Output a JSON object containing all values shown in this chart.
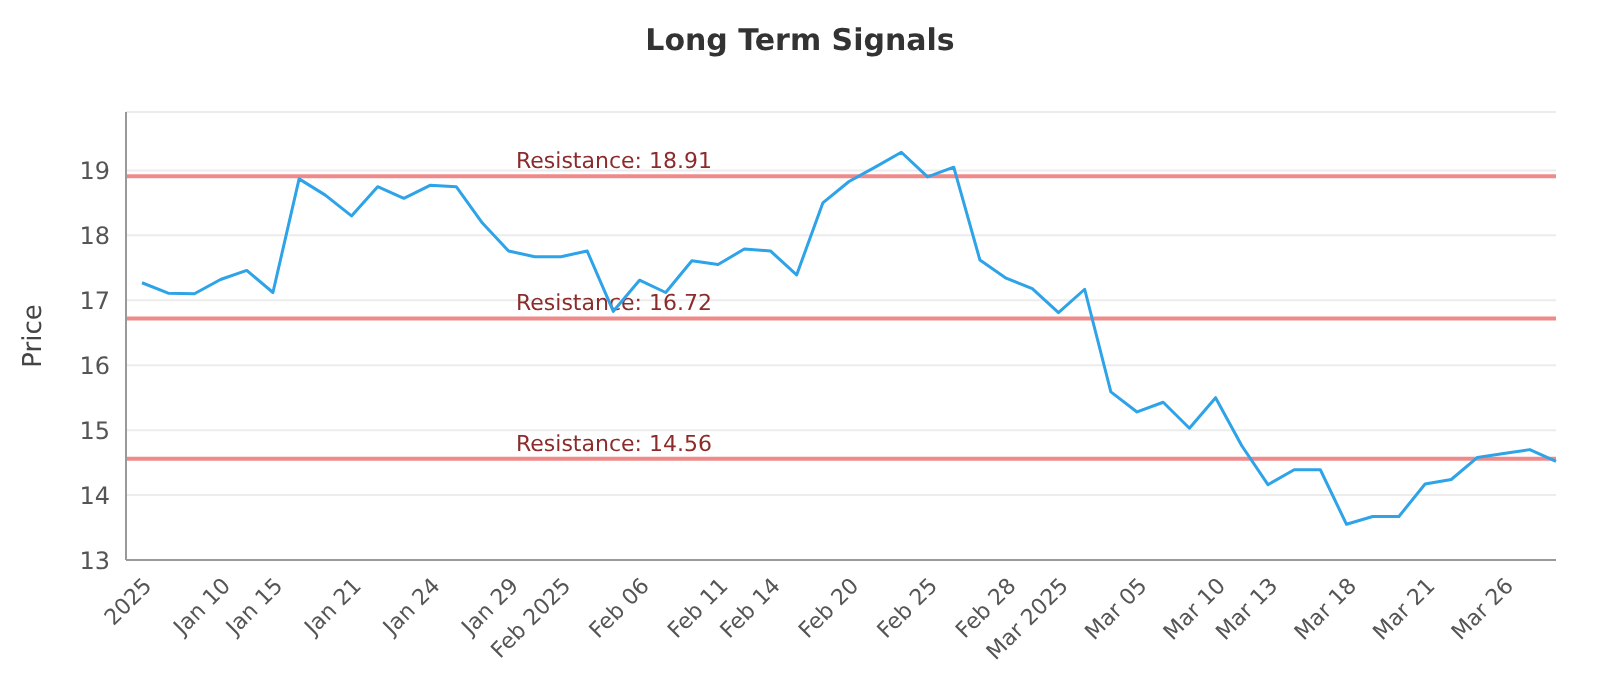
{
  "chart_data": {
    "type": "line",
    "title": "Long Term Signals",
    "ylabel": "Price",
    "categories": [
      "2025",
      null,
      null,
      "Jan 10",
      null,
      "Jan 15",
      null,
      null,
      "Jan 21",
      null,
      null,
      "Jan 24",
      null,
      null,
      "Jan 29",
      null,
      "Feb 2025",
      null,
      null,
      "Feb 06",
      null,
      null,
      "Feb 11",
      null,
      "Feb 14",
      null,
      null,
      "Feb 20",
      null,
      null,
      "Feb 25",
      null,
      null,
      "Feb 28",
      null,
      "Mar 2025",
      null,
      null,
      "Mar 05",
      null,
      null,
      "Mar 10",
      null,
      "Mar 13",
      null,
      null,
      "Mar 18",
      null,
      null,
      "Mar 21",
      null,
      null,
      "Mar 26",
      null,
      null
    ],
    "series": [
      {
        "color": "#2ea3e8",
        "values": [
          17.27,
          17.11,
          17.1,
          17.32,
          17.46,
          17.12,
          18.87,
          18.62,
          18.3,
          18.75,
          18.57,
          18.77,
          18.75,
          18.19,
          17.76,
          17.67,
          17.67,
          17.76,
          16.83,
          17.31,
          17.12,
          17.61,
          17.55,
          17.79,
          17.76,
          17.39,
          18.5,
          18.83,
          19.05,
          19.28,
          18.9,
          19.05,
          17.62,
          17.34,
          17.18,
          16.81,
          17.17,
          15.59,
          15.28,
          15.43,
          15.03,
          15.5,
          14.76,
          14.16,
          14.39,
          14.39,
          13.55,
          13.67,
          13.67,
          14.17,
          14.24,
          14.58,
          14.64,
          14.7,
          14.52
        ]
      }
    ],
    "ylim": [
      13,
      19.9
    ],
    "yticks": [
      13,
      14,
      15,
      16,
      17,
      18,
      19
    ],
    "grid": "y",
    "marker": "none",
    "line_style": "solid",
    "ref_lines": [
      {
        "axis": "y",
        "value": 18.91,
        "label": "Resistance: 18.91",
        "color": "#f08a8a"
      },
      {
        "axis": "y",
        "value": 16.72,
        "label": "Resistance: 16.72",
        "color": "#f08a8a"
      },
      {
        "axis": "y",
        "value": 14.56,
        "label": "Resistance: 14.56",
        "color": "#f08a8a"
      }
    ]
  }
}
